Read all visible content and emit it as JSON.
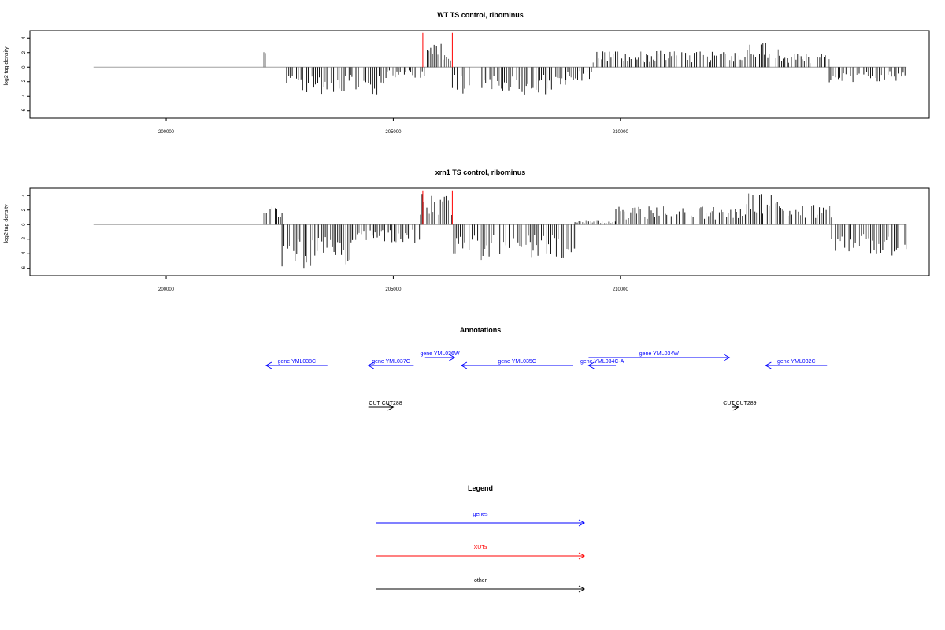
{
  "colors": {
    "gene": "#0000ff",
    "xut": "#ff0000",
    "other": "#000000",
    "baseline": "#a0a0a0",
    "bar": "#000000"
  },
  "chart_data": [
    {
      "type": "bar",
      "title": "WT TS control, ribominus",
      "ylabel": "log2 tag density",
      "xlim": [
        197000,
        216800
      ],
      "ylim": [
        -7,
        5
      ],
      "xticks": [
        200000,
        205000,
        210000
      ],
      "yticks": [
        4,
        2,
        0,
        -2,
        -4,
        -6
      ],
      "baseline_range": [
        198400,
        206200
      ],
      "grid": false,
      "xut_markers": [
        205650,
        206300
      ],
      "segments": [
        {
          "start": 202150,
          "end": 202230,
          "density": 2.4
        },
        {
          "start": 202650,
          "end": 204800,
          "density": -3.0
        },
        {
          "start": 204800,
          "end": 205700,
          "density": -1.2
        },
        {
          "start": 205700,
          "end": 206300,
          "density": 2.6
        },
        {
          "start": 206300,
          "end": 208800,
          "density": -3.0
        },
        {
          "start": 208800,
          "end": 209400,
          "density": -1.5
        },
        {
          "start": 209400,
          "end": 212700,
          "density": 1.8
        },
        {
          "start": 212700,
          "end": 213500,
          "density": 3.0
        },
        {
          "start": 213500,
          "end": 214600,
          "density": 1.5
        },
        {
          "start": 214600,
          "end": 215700,
          "density": -2.0
        },
        {
          "start": 215700,
          "end": 216300,
          "density": -1.6
        }
      ]
    },
    {
      "type": "bar",
      "title": "xrn1 TS control, ribominus",
      "ylabel": "log2 tag density",
      "xlim": [
        197000,
        216800
      ],
      "ylim": [
        -7,
        5
      ],
      "xticks": [
        200000,
        205000,
        210000
      ],
      "yticks": [
        4,
        2,
        0,
        -2,
        -4,
        -6
      ],
      "baseline_range": [
        198400,
        206200
      ],
      "grid": false,
      "xut_markers": [
        205650,
        206300
      ],
      "segments": [
        {
          "start": 202150,
          "end": 202550,
          "density": 2.3
        },
        {
          "start": 202550,
          "end": 204100,
          "density": -4.8
        },
        {
          "start": 204100,
          "end": 205600,
          "density": -2.0
        },
        {
          "start": 205600,
          "end": 206300,
          "density": 3.4
        },
        {
          "start": 206300,
          "end": 209000,
          "density": -4.0
        },
        {
          "start": 209000,
          "end": 209900,
          "density": 0.5
        },
        {
          "start": 209900,
          "end": 212700,
          "density": 2.0
        },
        {
          "start": 212700,
          "end": 213500,
          "density": 3.5
        },
        {
          "start": 213500,
          "end": 214650,
          "density": 2.2
        },
        {
          "start": 214650,
          "end": 216300,
          "density": -3.4
        }
      ]
    }
  ],
  "annotations": {
    "title": "Annotations",
    "genes": [
      {
        "label": "gene YML038C",
        "start": 203550,
        "end": 202200,
        "row": 0
      },
      {
        "label": "gene YML037C",
        "start": 205450,
        "end": 204450,
        "row": 0
      },
      {
        "label": "gene YML036W",
        "start": 205700,
        "end": 206350,
        "row": 1
      },
      {
        "label": "gene YML035C",
        "start": 208950,
        "end": 206500,
        "row": 0
      },
      {
        "label": "gene YML034C-A",
        "start": 209900,
        "end": 209300,
        "row": 0
      },
      {
        "label": "gene YML034W",
        "start": 209300,
        "end": 212400,
        "row": 1
      },
      {
        "label": "gene YML032C",
        "start": 214550,
        "end": 213200,
        "row": 0
      }
    ],
    "others": [
      {
        "label": "CUT CUT288",
        "start": 204450,
        "end": 205000
      },
      {
        "label": "CUT CUT289",
        "start": 212450,
        "end": 212600
      }
    ]
  },
  "legend": {
    "title": "Legend",
    "items": [
      {
        "label": "genes",
        "color": "#0000ff"
      },
      {
        "label": "XUTs",
        "color": "#ff0000"
      },
      {
        "label": "other",
        "color": "#000000"
      }
    ]
  }
}
